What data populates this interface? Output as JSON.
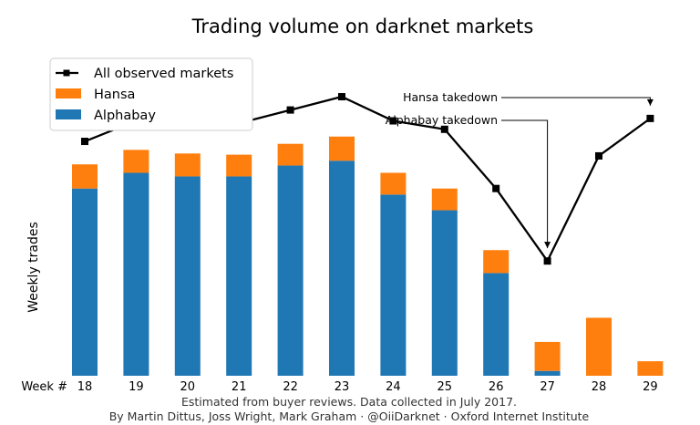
{
  "chart_data": {
    "type": "bar",
    "title": "Trading volume on darknet markets",
    "ylabel": "Weekly trades",
    "xlabel": "",
    "x_prefix": "Week #",
    "categories": [
      "18",
      "19",
      "20",
      "21",
      "22",
      "23",
      "24",
      "25",
      "26",
      "27",
      "28",
      "29"
    ],
    "stacked": true,
    "series": [
      {
        "name": "Alphabay",
        "kind": "bar",
        "color": "#1f77b4",
        "values": [
          155,
          168,
          165,
          165,
          174,
          178,
          150,
          137,
          85,
          4,
          0,
          0
        ]
      },
      {
        "name": "Hansa",
        "kind": "bar",
        "color": "#ff7f0e",
        "values": [
          20,
          19,
          19,
          18,
          18,
          20,
          18,
          18,
          19,
          24,
          48,
          12
        ]
      },
      {
        "name": "All observed markets",
        "kind": "line",
        "color": "#000000",
        "values": [
          194,
          211,
          211,
          209,
          220,
          231,
          211,
          204,
          155,
          95,
          182,
          213
        ]
      }
    ],
    "ylim": [
      0,
      265
    ],
    "y_ticks_shown": false,
    "grid": false,
    "legend_position": "top-left",
    "annotations": [
      {
        "text": "Hansa takedown",
        "category": "29"
      },
      {
        "text": "Alphabay takedown",
        "category": "27"
      }
    ],
    "caption": [
      "Estimated from buyer reviews. Data collected in July 2017.",
      "By Martin Dittus, Joss Wright, Mark Graham · @OiiDarknet · Oxford Internet Institute"
    ]
  }
}
